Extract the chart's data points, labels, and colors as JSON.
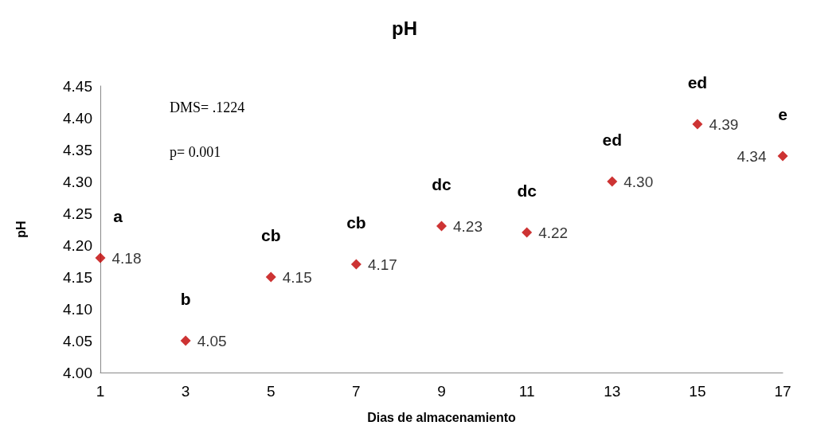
{
  "chart_data": {
    "type": "scatter",
    "title": "pH",
    "xlabel": "Dias de almacenamiento",
    "ylabel": "pH",
    "x": [
      1,
      3,
      5,
      7,
      9,
      11,
      13,
      15,
      17
    ],
    "xlim": [
      1,
      17
    ],
    "xticks": [
      1,
      3,
      5,
      7,
      9,
      11,
      13,
      15,
      17
    ],
    "values": [
      4.18,
      4.05,
      4.15,
      4.17,
      4.23,
      4.22,
      4.3,
      4.39,
      4.34
    ],
    "value_labels": [
      "4.18",
      "4.05",
      "4.15",
      "4.17",
      "4.23",
      "4.22",
      "4.30",
      "4.39",
      "4.34"
    ],
    "color": "#c00000",
    "marker": "diamond",
    "grid": false,
    "ylim": [
      4.0,
      4.45
    ],
    "yticks": [
      {
        "value": 4.0,
        "label": "4.00"
      },
      {
        "value": 4.05,
        "label": "4.05"
      },
      {
        "value": 4.1,
        "label": "4.10"
      },
      {
        "value": 4.15,
        "label": "4.15"
      },
      {
        "value": 4.2,
        "label": "4.20"
      },
      {
        "value": 4.25,
        "label": "4.25"
      },
      {
        "value": 4.3,
        "label": "4.30"
      },
      {
        "value": 4.35,
        "label": "4.35"
      },
      {
        "value": 4.4,
        "label": "4.40"
      },
      {
        "value": 4.45,
        "label": "4.45"
      }
    ],
    "annotations": [
      "DMS= .1224",
      "p= 0.001",
      {
        "text": "a",
        "x": 1,
        "y": 4.18
      },
      {
        "text": "b",
        "x": 3,
        "y": 4.05
      },
      {
        "text": "cb",
        "x": 5,
        "y": 4.15
      },
      {
        "text": "cb",
        "x": 7,
        "y": 4.17
      },
      {
        "text": "dc",
        "x": 9,
        "y": 4.23
      },
      {
        "text": "dc",
        "x": 11,
        "y": 4.22
      },
      {
        "text": "ed",
        "x": 13,
        "y": 4.3
      },
      {
        "text": "ed",
        "x": 15,
        "y": 4.39
      },
      {
        "text": "e",
        "x": 17,
        "y": 4.34
      }
    ]
  }
}
